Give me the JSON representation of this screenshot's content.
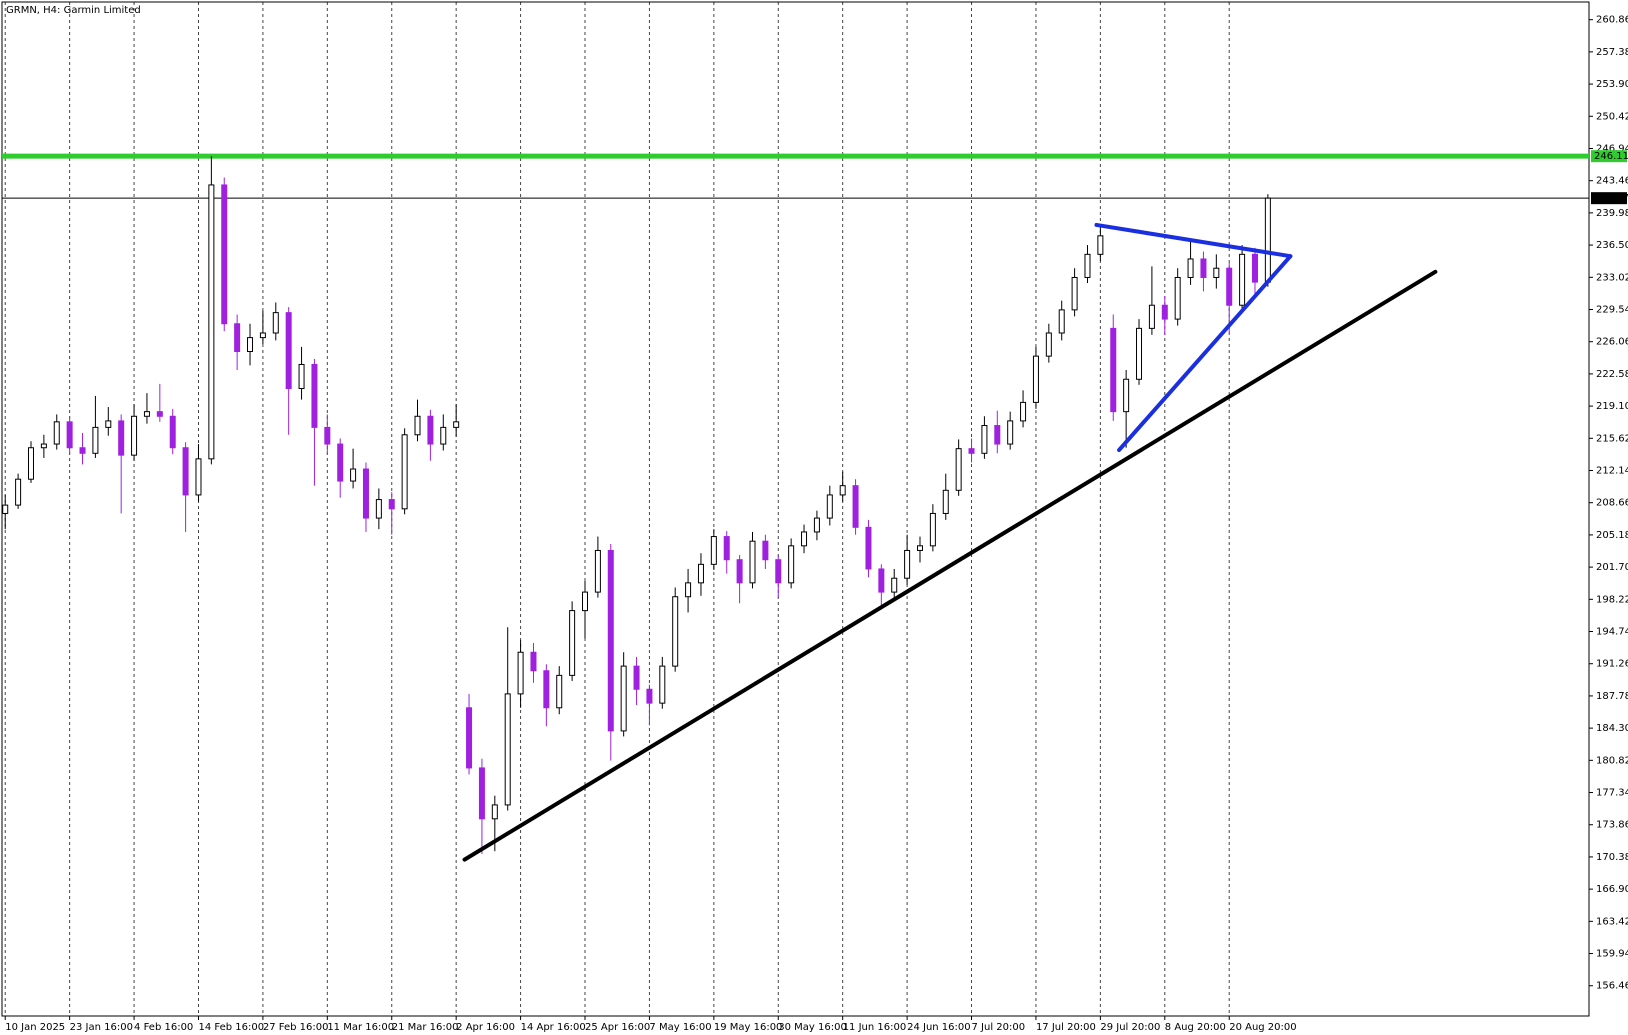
{
  "chart_data": {
    "type": "candlestick",
    "title": "GRMN, H4:  Garmin Limited",
    "x": [
      0,
      2,
      4,
      6,
      8,
      10,
      12,
      14,
      16,
      18,
      20,
      22,
      24,
      26,
      28,
      30,
      32,
      34,
      36,
      38,
      40,
      42,
      44,
      46,
      48,
      50,
      52,
      54,
      56,
      58,
      60,
      62,
      64,
      66,
      68,
      70,
      72,
      74,
      76,
      78,
      80,
      82,
      84,
      86,
      88,
      90,
      92,
      94,
      96,
      98,
      100,
      102,
      104,
      106,
      108,
      110,
      112,
      114,
      116,
      118,
      120,
      122,
      124,
      126,
      128,
      130,
      132,
      134,
      136,
      138,
      140,
      142,
      144,
      146,
      148,
      150,
      152,
      154,
      156,
      158,
      160,
      162,
      164,
      166,
      168,
      170,
      172,
      174,
      176,
      178,
      180,
      182,
      184,
      186,
      188,
      190,
      192,
      194,
      196
    ],
    "open": [
      207.5,
      208.4,
      211.2,
      214.6,
      215.0,
      217.4,
      214.6,
      214.0,
      216.8,
      217.5,
      213.8,
      218.0,
      218.5,
      218.0,
      214.6,
      209.5,
      213.4,
      243.0,
      228.0,
      225.0,
      226.5,
      227.0,
      229.2,
      221.0,
      223.6,
      216.8,
      215.0,
      211.0,
      212.3,
      207.0,
      209.0,
      208.0,
      216.0,
      218.0,
      215.0,
      216.8,
      186.5,
      180.0,
      174.5,
      176.0,
      188.0,
      192.5,
      190.5,
      186.5,
      190.0,
      197.0,
      199.0,
      203.5,
      184.0,
      191.0,
      188.5,
      187.0,
      191.0,
      198.5,
      200.0,
      202.0,
      205.0,
      202.5,
      200.0,
      204.5,
      202.5,
      200.0,
      204.0,
      205.5,
      207.0,
      209.5,
      210.5,
      206.0,
      201.5,
      199.0,
      200.5,
      203.5,
      204.0,
      207.5,
      210.0,
      214.5,
      214.0,
      217.0,
      215.0,
      217.5,
      219.5,
      224.5,
      227.0,
      229.5,
      233.0,
      235.5,
      227.5,
      218.5,
      222.0,
      227.5,
      230.0,
      228.5,
      233.0,
      235.0,
      233.0,
      234.0,
      230.0,
      235.5,
      232.5
    ],
    "high": [
      209.5,
      211.8,
      215.3,
      216.0,
      218.2,
      218.0,
      216.2,
      220.2,
      219.0,
      218.2,
      219.3,
      220.5,
      221.5,
      218.8,
      215.2,
      215.0,
      246.11,
      243.8,
      229.0,
      228.0,
      229.4,
      230.3,
      229.8,
      225.5,
      224.2,
      218.2,
      215.6,
      214.5,
      213.0,
      210.2,
      209.8,
      216.7,
      219.8,
      218.7,
      218.2,
      219.3,
      188.0,
      181.0,
      177.0,
      195.2,
      193.8,
      193.5,
      191.2,
      191.0,
      198.0,
      200.2,
      205.0,
      204.2,
      192.5,
      192.0,
      189.0,
      192.0,
      199.5,
      201.5,
      203.2,
      205.8,
      205.6,
      203.0,
      205.5,
      205.2,
      203.0,
      204.8,
      206.3,
      207.8,
      210.5,
      212.0,
      211.2,
      206.8,
      202.0,
      201.5,
      205.2,
      205.0,
      208.5,
      211.8,
      215.5,
      215.6,
      218.0,
      218.6,
      218.5,
      220.8,
      225.5,
      228.0,
      230.5,
      234.0,
      236.5,
      238.5,
      229.0,
      223.0,
      228.5,
      234.2,
      231.0,
      234.0,
      237.0,
      235.8,
      235.5,
      234.6,
      236.5,
      236.2,
      242.0
    ],
    "low": [
      205.8,
      208.0,
      210.8,
      213.5,
      214.4,
      213.9,
      212.8,
      213.5,
      215.9,
      207.5,
      213.2,
      217.2,
      217.4,
      213.9,
      205.5,
      208.8,
      212.8,
      227.2,
      223.0,
      223.5,
      225.8,
      226.2,
      216.0,
      219.8,
      210.5,
      213.9,
      209.2,
      210.2,
      205.5,
      205.8,
      205.2,
      207.4,
      215.3,
      213.2,
      214.3,
      215.8,
      179.3,
      170.7,
      171.0,
      175.4,
      186.5,
      189.2,
      184.5,
      185.8,
      189.4,
      194.0,
      198.4,
      180.8,
      183.4,
      186.8,
      184.6,
      186.4,
      190.4,
      196.8,
      198.6,
      201.4,
      201.0,
      197.8,
      199.4,
      201.5,
      198.4,
      199.4,
      203.2,
      204.6,
      206.2,
      208.8,
      205.2,
      200.6,
      197.5,
      198.2,
      199.8,
      202.2,
      203.4,
      206.8,
      209.4,
      213.0,
      213.4,
      214.0,
      214.4,
      216.8,
      218.8,
      223.8,
      226.2,
      228.8,
      232.4,
      234.8,
      217.5,
      214.6,
      221.4,
      226.8,
      226.8,
      227.8,
      232.2,
      231.5,
      231.8,
      227.0,
      229.4,
      231.0,
      232.0
    ],
    "close": [
      208.4,
      211.2,
      214.6,
      215.0,
      217.4,
      214.6,
      214.0,
      216.8,
      217.5,
      213.8,
      218.0,
      218.5,
      218.0,
      214.6,
      209.5,
      213.4,
      243.0,
      228.0,
      225.0,
      226.5,
      227.0,
      229.2,
      221.0,
      223.6,
      216.8,
      215.0,
      211.0,
      212.3,
      207.0,
      209.0,
      208.0,
      216.0,
      218.0,
      215.0,
      216.8,
      217.4,
      180.0,
      174.5,
      176.0,
      188.0,
      192.5,
      190.5,
      186.5,
      190.0,
      197.0,
      199.0,
      203.5,
      184.0,
      191.0,
      188.5,
      187.0,
      191.0,
      198.5,
      200.0,
      202.0,
      205.0,
      202.5,
      200.0,
      204.5,
      202.5,
      200.0,
      204.0,
      205.5,
      207.0,
      209.5,
      210.5,
      206.0,
      201.5,
      199.0,
      200.5,
      203.5,
      204.0,
      207.5,
      210.0,
      214.5,
      214.0,
      217.0,
      215.0,
      217.5,
      219.5,
      224.5,
      227.0,
      229.5,
      233.0,
      235.5,
      237.5,
      218.5,
      222.0,
      227.5,
      230.0,
      228.5,
      233.0,
      235.0,
      233.0,
      234.0,
      230.0,
      235.5,
      232.5,
      241.57
    ],
    "colors": {
      "up": "#ffffff",
      "down": "#a020e0",
      "outline": "#000000"
    },
    "xlim": [
      -0.5,
      245.85
    ],
    "xticks": [
      {
        "value": 0,
        "label": "10 Jan 2025"
      },
      {
        "value": 10,
        "label": "23 Jan 16:00"
      },
      {
        "value": 20,
        "label": "4 Feb 16:00"
      },
      {
        "value": 30,
        "label": "14 Feb 16:00"
      },
      {
        "value": 40,
        "label": "27 Feb 16:00"
      },
      {
        "value": 50,
        "label": "11 Mar 16:00"
      },
      {
        "value": 60,
        "label": "21 Mar 16:00"
      },
      {
        "value": 70,
        "label": "2 Apr 16:00"
      },
      {
        "value": 80,
        "label": "14 Apr 16:00"
      },
      {
        "value": 90,
        "label": "25 Apr 16:00"
      },
      {
        "value": 100,
        "label": "7 May 16:00"
      },
      {
        "value": 110,
        "label": "19 May 16:00"
      },
      {
        "value": 120,
        "label": "30 May 16:00"
      },
      {
        "value": 130,
        "label": "11 Jun 16:00"
      },
      {
        "value": 140,
        "label": "24 Jun 16:00"
      },
      {
        "value": 150,
        "label": "7 Jul 20:00"
      },
      {
        "value": 160,
        "label": "17 Jul 20:00"
      },
      {
        "value": 170,
        "label": "29 Jul 20:00"
      },
      {
        "value": 180,
        "label": "8 Aug 20:00"
      },
      {
        "value": 190,
        "label": "20 Aug 20:00"
      }
    ],
    "ylim": [
      153.19,
      262.77
    ],
    "yticks": [
      260.86,
      257.38,
      {
        "value": 253.9,
        "label": "253.90"
      },
      250.42,
      246.94,
      243.46,
      239.98,
      {
        "value": 236.5,
        "label": "236.50"
      },
      233.02,
      229.54,
      226.06,
      222.58,
      {
        "value": 219.1,
        "label": "219.10"
      },
      215.62,
      212.14,
      208.66,
      205.18,
      {
        "value": 201.7,
        "label": "201.70"
      },
      198.22,
      194.74,
      191.26,
      187.78,
      {
        "value": 184.3,
        "label": "184.30"
      },
      180.82,
      177.34,
      173.86,
      170.38,
      {
        "value": 166.9,
        "label": "166.90"
      },
      163.42,
      159.94,
      156.46
    ],
    "grid": true,
    "levels": [
      {
        "value": 246.11,
        "color": "#2ecc2e"
      },
      {
        "value": 241.57,
        "color": "#000000"
      }
    ],
    "trendlines": [
      {
        "color": "#000000",
        "points": [
          [
            71.3,
            170.09
          ],
          [
            222.0,
            233.61
          ]
        ]
      },
      {
        "color": "#1a2fe0",
        "points": [
          [
            169.4,
            238.68
          ],
          [
            199.5,
            235.3
          ]
        ]
      },
      {
        "color": "#1a2fe0",
        "points": [
          [
            199.5,
            235.3
          ],
          [
            172.9,
            214.35
          ]
        ]
      }
    ]
  }
}
